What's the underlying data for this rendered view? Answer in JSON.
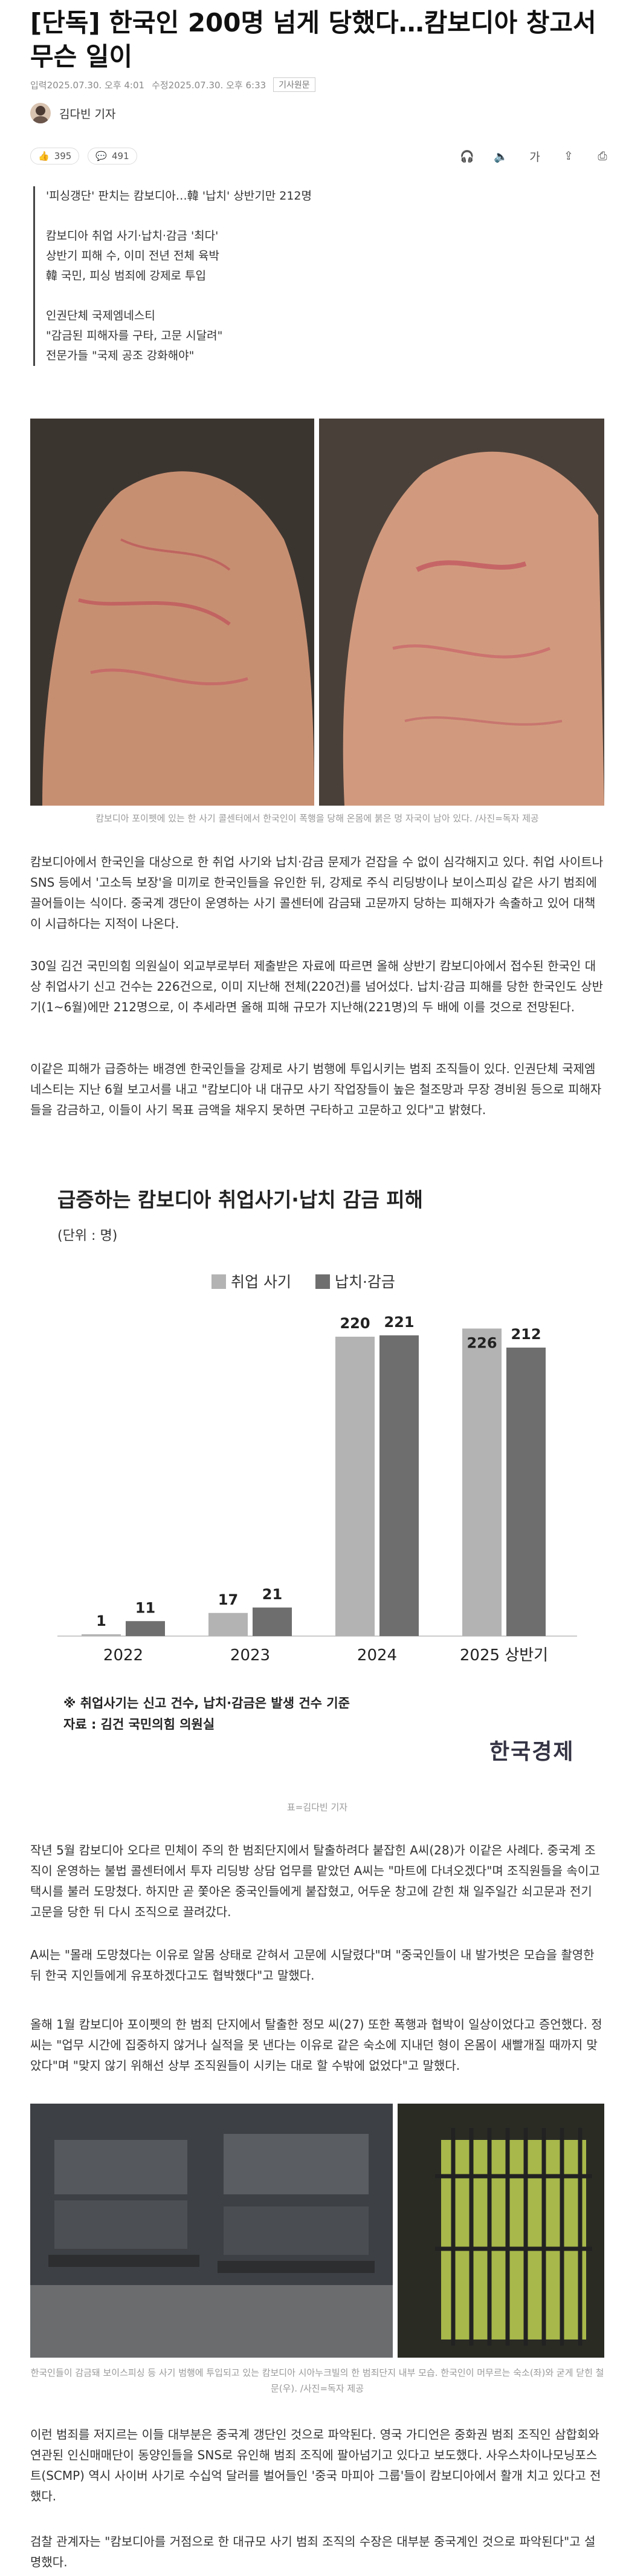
{
  "article": {
    "title": "[단독] 한국인 200명 넘게 당했다…캄보디아 창고서 무슨 일이",
    "input_time": "입력2025.07.30. 오후 4:01",
    "edit_time": "수정2025.07.30. 오후 6:33",
    "source_tag": "기사원문",
    "author": "김다빈 기자",
    "reactions": "395",
    "comments": "491"
  },
  "summary": [
    "'피싱갱단' 판치는 캄보디아…韓 '납치' 상반기만 212명",
    "",
    "캄보디아 취업 사기·납치·감금 '최다'",
    "상반기 피해 수, 이미 전년 전체 육박",
    "韓 국민, 피싱 범죄에 강제로 투입",
    "",
    "인권단체 국제엠네스티",
    "\"감금된 피해자를 구타, 고문 시달려\"",
    "전문가들 \"국제 공조 강화해야\""
  ],
  "photo1_caption": "캄보디아 포이펫에 있는 한 사기 콜센터에서 한국인이 폭행을 당해 온몸에 붉은 멍 자국이 남아 있다. /사진=독자 제공",
  "paragraphs": [
    "캄보디아에서 한국인을 대상으로 한 취업 사기와 납치·감금 문제가 걷잡을 수 없이 심각해지고 있다. 취업 사이트나 SNS 등에서 '고소득 보장'을 미끼로 한국인들을 유인한 뒤, 강제로 주식 리딩방이나 보이스피싱 같은 사기 범죄에 끌어들이는 식이다. 중국계 갱단이 운영하는 사기 콜센터에 감금돼 고문까지 당하는 피해자가 속출하고 있어 대책이 시급하다는 지적이 나온다.",
    "30일 김건 국민의힘 의원실이 외교부로부터 제출받은 자료에 따르면 올해 상반기 캄보디아에서 접수된 한국인 대상 취업사기 신고 건수는 226건으로, 이미 지난해 전체(220건)를 넘어섰다. 납치·감금 피해를 당한 한국인도 상반기(1~6월)에만 212명으로, 이 추세라면 올해 피해 규모가 지난해(221명)의 두 배에 이를 것으로 전망된다.",
    "이같은 피해가 급증하는 배경엔 한국인들을 강제로 사기 범행에 투입시키는 범죄 조직들이 있다. 인권단체 국제엠네스티는 지난 6월 보고서를 내고 \"캄보디아 내 대규모 사기 작업장들이 높은 철조망과 무장 경비원 등으로 피해자들을 감금하고, 이들이 사기 목표 금액을 채우지 못하면 구타하고 고문하고 있다\"고 밝혔다.",
    "작년 5월 캄보디아 오다르 민체이 주의 한 범죄단지에서 탈출하려다 붙잡힌 A씨(28)가 이같은 사례다. 중국계 조직이 운영하는 불법 콜센터에서 투자 리딩방 상담 업무를 맡았던 A씨는 \"마트에 다녀오겠다\"며 조직원들을 속이고 택시를 불러 도망쳤다. 하지만 곧 쫓아온 중국인들에게 붙잡혔고, 어두운 창고에 갇힌 채 일주일간 쇠고문과 전기 고문을 당한 뒤 다시 조직으로 끌려갔다.",
    "A씨는 \"몰래 도망쳤다는 이유로 알몸 상태로 갇혀서 고문에 시달렸다\"며 \"중국인들이 내 발가벗은 모습을 촬영한 뒤 한국 지인들에게 유포하겠다고도 협박했다\"고 말했다.",
    "올해 1월 캄보디아 포이펫의 한 범죄 단지에서 탈출한 정모 씨(27) 또한 폭행과 협박이 일상이었다고 증언했다. 정 씨는 \"업무 시간에 집중하지 않거나 실적을 못 낸다는 이유로 같은 숙소에 지내던 형이 온몸이 새빨개질 때까지 맞았다\"며 \"맞지 않기 위해선 상부 조직원들이 시키는 대로 할 수밖에 없었다\"고 말했다.",
    "이런 범죄를 저지르는 이들 대부분은 중국계 갱단인 것으로 파악된다. 영국 가디언은 중화권 범죄 조직인 삼합회와 연관된 인신매매단이 동양인들을 SNS로 유인해 범죄 조직에 팔아넘기고 있다고 보도했다. 사우스차이나모닝포스트(SCMP) 역시 사이버 사기로 수십억 달러를 벌어들인 '중국 마피아 그룹'들이 캄보디아에서 활개 치고 있다고 전했다.",
    "검찰 관계자는 \"캄보디아를 거점으로 한 대규모 사기 범죄 조직의 수장은 대부분 중국계인 것으로 파악된다\"고 설명했다."
  ],
  "chart_card": {
    "title": "급증하는 캄보디아 취업사기·납치 감금 피해",
    "unit": "(단위 : 명)",
    "note": "※ 취업사기는 신고 건수, 납치·감금은 발생 건수 기준",
    "source": "자료 : 김건 국민의힘 의원실",
    "logo": "한국경제",
    "credit": "표=김다빈 기자"
  },
  "chart_data": {
    "type": "bar",
    "categories": [
      "2022",
      "2023",
      "2024",
      "2025 상반기"
    ],
    "series": [
      {
        "name": "취업 사기",
        "values": [
          1,
          17,
          220,
          226
        ],
        "color": "#b3b3b3"
      },
      {
        "name": "납치·감금",
        "values": [
          11,
          21,
          221,
          212
        ],
        "color": "#6e6e6e"
      }
    ],
    "ylim": [
      0,
      240
    ],
    "grid": false,
    "legend": "top-center"
  },
  "photo2_caption": "한국인들이 감금돼 보이스피싱 등 사기 범행에 투입되고 있는 캄보디아 시아누크빌의 한 범죄단지 내부 모습. 한국인이 머무르는 숙소(좌)와 굳게 닫힌 철문(우). /사진=독자 제공"
}
